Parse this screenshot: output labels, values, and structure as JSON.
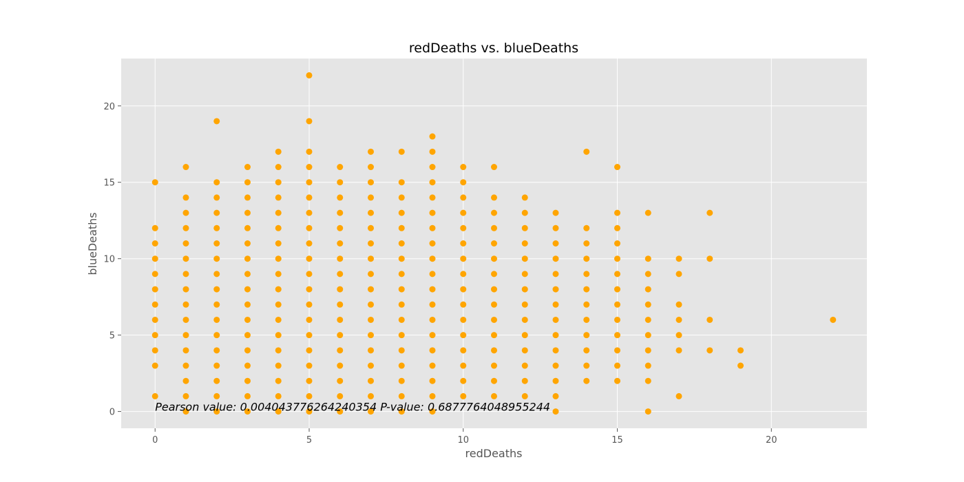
{
  "chart_data": {
    "type": "scatter",
    "title": "redDeaths vs. blueDeaths",
    "xlabel": "redDeaths",
    "ylabel": "blueDeaths",
    "xlim": [
      -1.1,
      23.1
    ],
    "ylim": [
      -1.1,
      23.1
    ],
    "xticks": [
      0,
      5,
      10,
      15,
      20
    ],
    "yticks": [
      0,
      5,
      10,
      15,
      20
    ],
    "grid": true,
    "background_color": "#e5e5e5",
    "point_color": "#ffa500",
    "annotation": "Pearson value: 0.004043776264240354   P-value: 0.6877764048955244",
    "annotation_position": [
      0,
      0
    ],
    "points": [
      [
        0,
        1
      ],
      [
        0,
        3
      ],
      [
        0,
        4
      ],
      [
        0,
        5
      ],
      [
        0,
        6
      ],
      [
        0,
        7
      ],
      [
        0,
        8
      ],
      [
        0,
        9
      ],
      [
        0,
        10
      ],
      [
        0,
        11
      ],
      [
        0,
        12
      ],
      [
        0,
        15
      ],
      [
        1,
        0
      ],
      [
        1,
        1
      ],
      [
        1,
        2
      ],
      [
        1,
        3
      ],
      [
        1,
        4
      ],
      [
        1,
        5
      ],
      [
        1,
        6
      ],
      [
        1,
        7
      ],
      [
        1,
        8
      ],
      [
        1,
        9
      ],
      [
        1,
        10
      ],
      [
        1,
        11
      ],
      [
        1,
        12
      ],
      [
        1,
        13
      ],
      [
        1,
        14
      ],
      [
        1,
        16
      ],
      [
        2,
        0
      ],
      [
        2,
        1
      ],
      [
        2,
        2
      ],
      [
        2,
        3
      ],
      [
        2,
        4
      ],
      [
        2,
        5
      ],
      [
        2,
        6
      ],
      [
        2,
        7
      ],
      [
        2,
        8
      ],
      [
        2,
        9
      ],
      [
        2,
        10
      ],
      [
        2,
        11
      ],
      [
        2,
        12
      ],
      [
        2,
        13
      ],
      [
        2,
        14
      ],
      [
        2,
        15
      ],
      [
        2,
        19
      ],
      [
        3,
        0
      ],
      [
        3,
        1
      ],
      [
        3,
        2
      ],
      [
        3,
        3
      ],
      [
        3,
        4
      ],
      [
        3,
        5
      ],
      [
        3,
        6
      ],
      [
        3,
        7
      ],
      [
        3,
        8
      ],
      [
        3,
        9
      ],
      [
        3,
        10
      ],
      [
        3,
        11
      ],
      [
        3,
        12
      ],
      [
        3,
        13
      ],
      [
        3,
        14
      ],
      [
        3,
        15
      ],
      [
        3,
        16
      ],
      [
        4,
        0
      ],
      [
        4,
        1
      ],
      [
        4,
        2
      ],
      [
        4,
        3
      ],
      [
        4,
        4
      ],
      [
        4,
        5
      ],
      [
        4,
        6
      ],
      [
        4,
        7
      ],
      [
        4,
        8
      ],
      [
        4,
        9
      ],
      [
        4,
        10
      ],
      [
        4,
        11
      ],
      [
        4,
        12
      ],
      [
        4,
        13
      ],
      [
        4,
        14
      ],
      [
        4,
        15
      ],
      [
        4,
        16
      ],
      [
        4,
        17
      ],
      [
        5,
        0
      ],
      [
        5,
        1
      ],
      [
        5,
        2
      ],
      [
        5,
        3
      ],
      [
        5,
        4
      ],
      [
        5,
        5
      ],
      [
        5,
        6
      ],
      [
        5,
        7
      ],
      [
        5,
        8
      ],
      [
        5,
        9
      ],
      [
        5,
        10
      ],
      [
        5,
        11
      ],
      [
        5,
        12
      ],
      [
        5,
        13
      ],
      [
        5,
        14
      ],
      [
        5,
        15
      ],
      [
        5,
        16
      ],
      [
        5,
        17
      ],
      [
        5,
        19
      ],
      [
        5,
        22
      ],
      [
        6,
        0
      ],
      [
        6,
        1
      ],
      [
        6,
        2
      ],
      [
        6,
        3
      ],
      [
        6,
        4
      ],
      [
        6,
        5
      ],
      [
        6,
        6
      ],
      [
        6,
        7
      ],
      [
        6,
        8
      ],
      [
        6,
        9
      ],
      [
        6,
        10
      ],
      [
        6,
        11
      ],
      [
        6,
        12
      ],
      [
        6,
        13
      ],
      [
        6,
        14
      ],
      [
        6,
        15
      ],
      [
        6,
        16
      ],
      [
        7,
        0
      ],
      [
        7,
        1
      ],
      [
        7,
        2
      ],
      [
        7,
        3
      ],
      [
        7,
        4
      ],
      [
        7,
        5
      ],
      [
        7,
        6
      ],
      [
        7,
        7
      ],
      [
        7,
        8
      ],
      [
        7,
        9
      ],
      [
        7,
        10
      ],
      [
        7,
        11
      ],
      [
        7,
        12
      ],
      [
        7,
        13
      ],
      [
        7,
        14
      ],
      [
        7,
        15
      ],
      [
        7,
        16
      ],
      [
        7,
        17
      ],
      [
        8,
        0
      ],
      [
        8,
        1
      ],
      [
        8,
        2
      ],
      [
        8,
        3
      ],
      [
        8,
        4
      ],
      [
        8,
        5
      ],
      [
        8,
        6
      ],
      [
        8,
        7
      ],
      [
        8,
        8
      ],
      [
        8,
        9
      ],
      [
        8,
        10
      ],
      [
        8,
        11
      ],
      [
        8,
        12
      ],
      [
        8,
        13
      ],
      [
        8,
        14
      ],
      [
        8,
        15
      ],
      [
        8,
        17
      ],
      [
        9,
        0
      ],
      [
        9,
        1
      ],
      [
        9,
        2
      ],
      [
        9,
        3
      ],
      [
        9,
        4
      ],
      [
        9,
        5
      ],
      [
        9,
        6
      ],
      [
        9,
        7
      ],
      [
        9,
        8
      ],
      [
        9,
        9
      ],
      [
        9,
        10
      ],
      [
        9,
        11
      ],
      [
        9,
        12
      ],
      [
        9,
        13
      ],
      [
        9,
        14
      ],
      [
        9,
        15
      ],
      [
        9,
        16
      ],
      [
        9,
        17
      ],
      [
        9,
        18
      ],
      [
        10,
        1
      ],
      [
        10,
        2
      ],
      [
        10,
        3
      ],
      [
        10,
        4
      ],
      [
        10,
        5
      ],
      [
        10,
        6
      ],
      [
        10,
        7
      ],
      [
        10,
        8
      ],
      [
        10,
        9
      ],
      [
        10,
        10
      ],
      [
        10,
        11
      ],
      [
        10,
        12
      ],
      [
        10,
        13
      ],
      [
        10,
        14
      ],
      [
        10,
        15
      ],
      [
        10,
        16
      ],
      [
        11,
        1
      ],
      [
        11,
        2
      ],
      [
        11,
        3
      ],
      [
        11,
        4
      ],
      [
        11,
        5
      ],
      [
        11,
        6
      ],
      [
        11,
        7
      ],
      [
        11,
        8
      ],
      [
        11,
        9
      ],
      [
        11,
        10
      ],
      [
        11,
        11
      ],
      [
        11,
        12
      ],
      [
        11,
        13
      ],
      [
        11,
        14
      ],
      [
        11,
        16
      ],
      [
        12,
        1
      ],
      [
        12,
        2
      ],
      [
        12,
        3
      ],
      [
        12,
        4
      ],
      [
        12,
        5
      ],
      [
        12,
        6
      ],
      [
        12,
        7
      ],
      [
        12,
        8
      ],
      [
        12,
        9
      ],
      [
        12,
        10
      ],
      [
        12,
        11
      ],
      [
        12,
        12
      ],
      [
        12,
        13
      ],
      [
        12,
        14
      ],
      [
        13,
        0
      ],
      [
        13,
        1
      ],
      [
        13,
        2
      ],
      [
        13,
        3
      ],
      [
        13,
        4
      ],
      [
        13,
        5
      ],
      [
        13,
        6
      ],
      [
        13,
        7
      ],
      [
        13,
        8
      ],
      [
        13,
        9
      ],
      [
        13,
        10
      ],
      [
        13,
        11
      ],
      [
        13,
        12
      ],
      [
        13,
        13
      ],
      [
        14,
        2
      ],
      [
        14,
        3
      ],
      [
        14,
        4
      ],
      [
        14,
        5
      ],
      [
        14,
        6
      ],
      [
        14,
        7
      ],
      [
        14,
        8
      ],
      [
        14,
        9
      ],
      [
        14,
        10
      ],
      [
        14,
        11
      ],
      [
        14,
        12
      ],
      [
        14,
        17
      ],
      [
        15,
        2
      ],
      [
        15,
        3
      ],
      [
        15,
        4
      ],
      [
        15,
        5
      ],
      [
        15,
        6
      ],
      [
        15,
        7
      ],
      [
        15,
        8
      ],
      [
        15,
        9
      ],
      [
        15,
        10
      ],
      [
        15,
        11
      ],
      [
        15,
        12
      ],
      [
        15,
        13
      ],
      [
        15,
        16
      ],
      [
        16,
        0
      ],
      [
        16,
        2
      ],
      [
        16,
        3
      ],
      [
        16,
        4
      ],
      [
        16,
        5
      ],
      [
        16,
        6
      ],
      [
        16,
        7
      ],
      [
        16,
        8
      ],
      [
        16,
        9
      ],
      [
        16,
        10
      ],
      [
        16,
        13
      ],
      [
        17,
        1
      ],
      [
        17,
        4
      ],
      [
        17,
        5
      ],
      [
        17,
        6
      ],
      [
        17,
        7
      ],
      [
        17,
        9
      ],
      [
        17,
        10
      ],
      [
        18,
        4
      ],
      [
        18,
        6
      ],
      [
        18,
        10
      ],
      [
        18,
        13
      ],
      [
        19,
        3
      ],
      [
        19,
        4
      ],
      [
        22,
        6
      ]
    ]
  }
}
